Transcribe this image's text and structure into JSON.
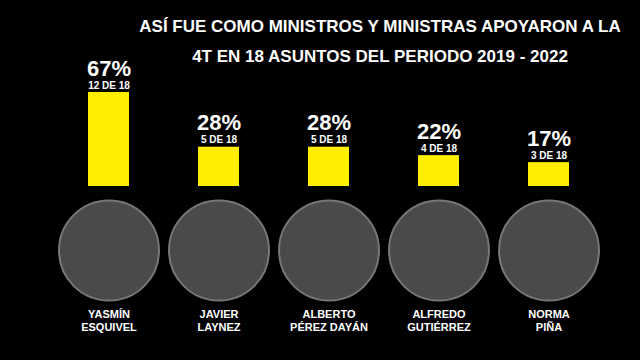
{
  "chart_data": {
    "type": "bar",
    "title": "ASÍ FUE COMO MINISTROS Y MINISTRAS APOYARON A LA 4T EN 18 ASUNTOS DEL PERIODO 2019 - 2022",
    "categories": [
      "YASMÍN ESQUIVEL",
      "JAVIER LAYNEZ",
      "ALBERTO PÉREZ DAYÁN",
      "ALFREDO GUTIÉRREZ",
      "NORMA PIÑA"
    ],
    "values": [
      67,
      28,
      28,
      22,
      17
    ],
    "value_labels": [
      "67%",
      "28%",
      "28%",
      "22%",
      "17%"
    ],
    "annotations": [
      "12 DE 18",
      "5 DE 18",
      "5 DE 18",
      "4 DE 18",
      "3 DE 18"
    ],
    "color": "#ffee00",
    "ylim": [
      0,
      67
    ],
    "data_labels": true,
    "tick_labels": "x",
    "grid": false
  }
}
